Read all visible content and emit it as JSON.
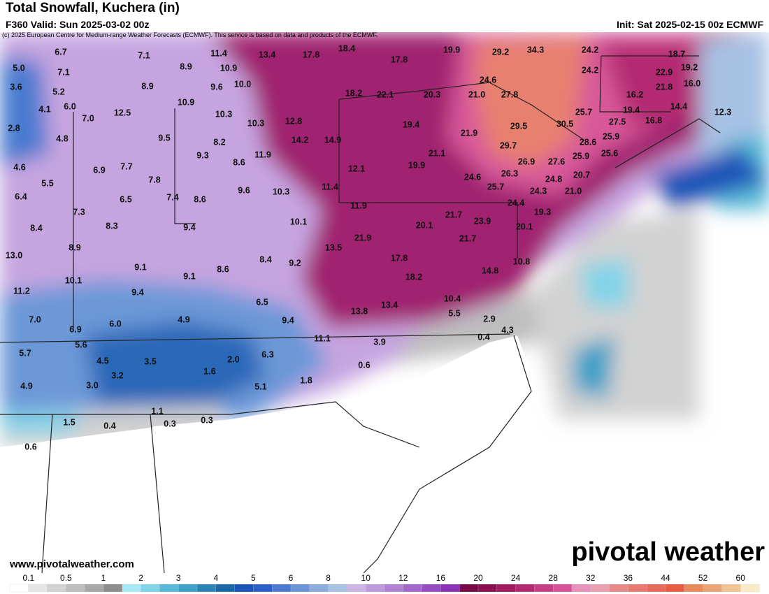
{
  "header": {
    "title": "Total Snowfall, Kuchera (in)",
    "valid": "F360 Valid: Sun 2025-03-02 00z",
    "init": "Init: Sat 2025-02-15 00z ECMWF",
    "credit": "(c) 2025 European Centre for Medium-range Weather Forecasts (ECMWF). This service is based on data and products of the ECMWF."
  },
  "map": {
    "labels": [
      "6.7",
      "7.1",
      "11.4",
      "13.4",
      "17.8",
      "18.4",
      "19.9",
      "29.2",
      "34.3",
      "24.2",
      "18.7",
      "5.0",
      "7.1",
      "8.9",
      "10.9",
      "17.8",
      "24.2",
      "22.9",
      "19.2",
      "3.6",
      "5.2",
      "8.9",
      "9.6",
      "10.0",
      "18.2",
      "22.1",
      "20.3",
      "21.0",
      "27.8",
      "24.6",
      "21.8",
      "16.0",
      "4.1",
      "6.0",
      "7.0",
      "12.5",
      "10.9",
      "10.3",
      "16.2",
      "19.4",
      "14.4",
      "12.3",
      "25.7",
      "2.8",
      "10.3",
      "12.8",
      "19.4",
      "21.9",
      "29.5",
      "30.5",
      "27.5",
      "16.8",
      "4.8",
      "9.5",
      "8.2",
      "14.2",
      "14.9",
      "29.7",
      "28.6",
      "25.9",
      "4.6",
      "6.9",
      "7.7",
      "9.3",
      "11.9",
      "8.6",
      "21.1",
      "12.1",
      "19.9",
      "26.9",
      "27.6",
      "25.9",
      "25.6",
      "5.5",
      "7.8",
      "9.6",
      "10.3",
      "11.4",
      "24.6",
      "26.3",
      "25.7",
      "24.8",
      "20.7",
      "24.3",
      "21.0",
      "6.4",
      "6.5",
      "7.4",
      "8.6",
      "8.4",
      "7.3",
      "8.3",
      "11.9",
      "24.4",
      "19.3",
      "21.7",
      "23.9",
      "20.1",
      "20.1",
      "10.1",
      "9.4",
      "21.9",
      "21.7",
      "13.5",
      "13.0",
      "8.9",
      "9.1",
      "8.6",
      "8.4",
      "9.2",
      "17.8",
      "10.8",
      "10.1",
      "9.1",
      "18.2",
      "14.8",
      "11.2",
      "9.4",
      "6.5",
      "10.4",
      "7.0",
      "4.9",
      "6.0",
      "13.4",
      "13.8",
      "9.4",
      "5.5",
      "2.9",
      "6.9",
      "4.3",
      "0.4",
      "5.6",
      "11.1",
      "3.9",
      "5.7",
      "4.5",
      "3.5",
      "2.0",
      "6.3",
      "0.6",
      "3.2",
      "1.6",
      "4.9",
      "3.0",
      "5.1",
      "1.8",
      "1.1",
      "1.5",
      "0.4",
      "0.3",
      "0.3",
      "0.6"
    ]
  },
  "footer": {
    "site": "www.pivotalweather.com",
    "brand": "pivotal weather"
  },
  "colorbar": {
    "ticks": [
      "0.1",
      "0.5",
      "1",
      "2",
      "3",
      "4",
      "5",
      "6",
      "8",
      "10",
      "12",
      "16",
      "20",
      "24",
      "28",
      "32",
      "36",
      "44",
      "52",
      "60"
    ],
    "colors": [
      "#ffffff",
      "#e6e6e6",
      "#d2d2d2",
      "#bebebe",
      "#a8a8a8",
      "#8e8e8e",
      "#a6e8f4",
      "#80d4e8",
      "#58bad8",
      "#3ca0c8",
      "#2b84b8",
      "#1b6aa8",
      "#1a54b8",
      "#2c60c8",
      "#4c7ad0",
      "#6c94d8",
      "#8cacdc",
      "#a8c2e4",
      "#ccb4e4",
      "#be9cdc",
      "#b082d4",
      "#a468cc",
      "#984cc2",
      "#8c34b8",
      "#780a48",
      "#8a1052",
      "#a01a62",
      "#b42a72",
      "#c83e86",
      "#d8529a",
      "#e892bc",
      "#e8a2b2",
      "#e88a8a",
      "#e87a72",
      "#e86a5a",
      "#e85c42",
      "#e88a5a",
      "#eca474",
      "#f2c494",
      "#faecc4"
    ]
  }
}
